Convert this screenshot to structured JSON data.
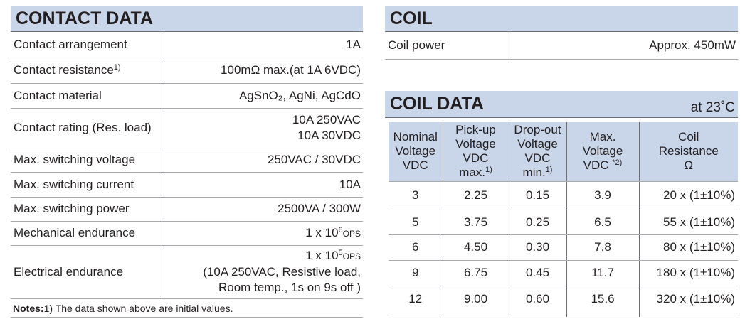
{
  "contact_data": {
    "title": "CONTACT DATA",
    "rows": [
      {
        "label": [
          "Contact arrangement"
        ],
        "value": [
          [
            "1A"
          ]
        ]
      },
      {
        "label": [
          "Contact resistance",
          {
            "text": "1)",
            "style": "sup"
          }
        ],
        "value": [
          [
            "100mΩ max.(at 1A 6VDC)"
          ]
        ]
      },
      {
        "label": [
          "Contact material"
        ],
        "value": [
          [
            "AgSnO₂, AgNi, AgCdO"
          ]
        ]
      },
      {
        "label": [
          "Contact rating (Res. load)"
        ],
        "value": [
          [
            "10A  250VAC"
          ],
          [
            "10A  30VDC"
          ]
        ]
      },
      {
        "label": [
          "Max. switching voltage"
        ],
        "value": [
          [
            "250VAC / 30VDC"
          ]
        ]
      },
      {
        "label": [
          "Max. switching current"
        ],
        "value": [
          [
            "10A"
          ]
        ]
      },
      {
        "label": [
          "Max. switching power"
        ],
        "value": [
          [
            "2500VA / 300W"
          ]
        ]
      },
      {
        "label": [
          "Mechanical endurance"
        ],
        "value": [
          [
            "1 x 10",
            {
              "text": "6",
              "style": "sup"
            },
            {
              "text": "OPS",
              "style": "small"
            }
          ]
        ]
      },
      {
        "label": [
          "Electrical endurance"
        ],
        "value": [
          [
            "1 x 10",
            {
              "text": "5",
              "style": "sup"
            },
            {
              "text": "OPS",
              "style": "small"
            }
          ],
          [
            "(10A 250VAC, Resistive load,"
          ],
          [
            "Room temp., 1s on 9s off )"
          ]
        ]
      }
    ],
    "notes": {
      "label": "Notes:",
      "text": "1) The data shown above are initial values."
    }
  },
  "coil": {
    "title": "COIL",
    "rows": [
      {
        "label": [
          "Coil power"
        ],
        "value": [
          [
            "Approx. 450mW"
          ]
        ]
      }
    ]
  },
  "coil_data": {
    "title": "COIL DATA",
    "condition": "at 23˚C",
    "headers": [
      [
        [
          "Nominal"
        ],
        [
          "Voltage"
        ],
        [
          "VDC"
        ]
      ],
      [
        [
          "Pick-up"
        ],
        [
          "Voltage"
        ],
        [
          "VDC"
        ],
        [
          "max.",
          {
            "text": "1)",
            "style": "sup"
          }
        ]
      ],
      [
        [
          "Drop-out"
        ],
        [
          "Voltage"
        ],
        [
          "VDC"
        ],
        [
          "min.",
          {
            "text": "1)",
            "style": "sup"
          }
        ]
      ],
      [
        [
          "Max."
        ],
        [
          "Voltage"
        ],
        [
          "VDC ",
          {
            "text": "*2)",
            "style": "sup"
          }
        ]
      ],
      [
        [
          "Coil"
        ],
        [
          "Resistance"
        ],
        [
          "Ω"
        ]
      ]
    ],
    "rows": [
      [
        "3",
        "2.25",
        "0.15",
        "3.9",
        "20 x (1±10%)"
      ],
      [
        "5",
        "3.75",
        "0.25",
        "6.5",
        "55 x (1±10%)"
      ],
      [
        "6",
        "4.50",
        "0.30",
        "7.8",
        "80 x (1±10%)"
      ],
      [
        "9",
        "6.75",
        "0.45",
        "11.7",
        "180 x (1±10%)"
      ],
      [
        "12",
        "9.00",
        "0.60",
        "15.6",
        "320 x (1±10%)"
      ]
    ]
  }
}
